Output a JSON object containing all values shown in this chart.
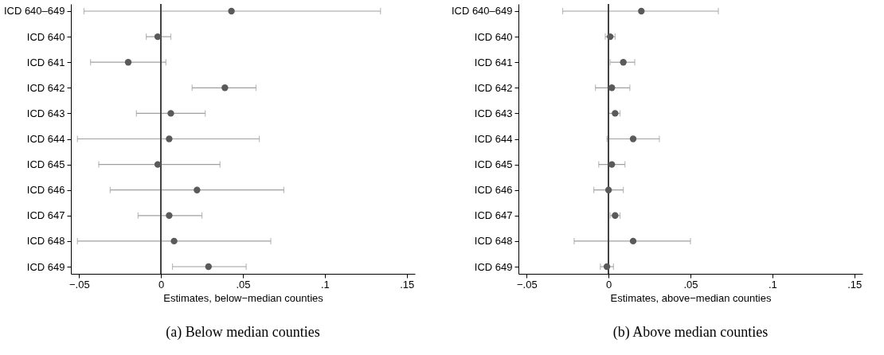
{
  "chart_data": [
    {
      "type": "scatter",
      "orientation": "horizontal",
      "title": "(a) Below median counties",
      "xlabel": "Estimates, below−median counties",
      "categories": [
        "ICD 640–649",
        "ICD 640",
        "ICD 641",
        "ICD 642",
        "ICD 643",
        "ICD 644",
        "ICD 645",
        "ICD 646",
        "ICD 647",
        "ICD 648",
        "ICD 649"
      ],
      "values": [
        0.043,
        -0.002,
        -0.02,
        0.039,
        0.006,
        0.005,
        -0.002,
        0.022,
        0.005,
        0.008,
        0.029
      ],
      "errors": [
        [
          -0.047,
          0.134
        ],
        [
          -0.009,
          0.006
        ],
        [
          -0.043,
          0.003
        ],
        [
          0.019,
          0.058
        ],
        [
          -0.015,
          0.027
        ],
        [
          -0.051,
          0.06
        ],
        [
          -0.038,
          0.036
        ],
        [
          -0.031,
          0.075
        ],
        [
          -0.014,
          0.025
        ],
        [
          -0.051,
          0.067
        ],
        [
          0.007,
          0.052
        ]
      ],
      "color": "#5a5a5a",
      "marker": "circle",
      "xlim": [
        -0.055,
        0.155
      ],
      "xticks": [
        {
          "value": -0.05,
          "label": "−.05"
        },
        0,
        {
          "value": 0.05,
          "label": ".05"
        },
        {
          "value": 0.1,
          "label": ".1"
        },
        {
          "value": 0.15,
          "label": ".15"
        }
      ],
      "ref_lines": [
        {
          "axis": "x",
          "value": 0,
          "label": null,
          "color": "#444444"
        }
      ]
    },
    {
      "type": "scatter",
      "orientation": "horizontal",
      "title": "(b) Above median counties",
      "xlabel": "Estimates, above−median counties",
      "categories": [
        "ICD 640–649",
        "ICD 640",
        "ICD 641",
        "ICD 642",
        "ICD 643",
        "ICD 644",
        "ICD 645",
        "ICD 646",
        "ICD 647",
        "ICD 648",
        "ICD 649"
      ],
      "values": [
        0.02,
        0.001,
        0.009,
        0.002,
        0.004,
        0.015,
        0.002,
        0.0,
        0.004,
        0.015,
        -0.001
      ],
      "errors": [
        [
          -0.028,
          0.067
        ],
        [
          -0.002,
          0.004
        ],
        [
          0.001,
          0.016
        ],
        [
          -0.008,
          0.013
        ],
        [
          0.0,
          0.007
        ],
        [
          -0.001,
          0.031
        ],
        [
          -0.006,
          0.01
        ],
        [
          -0.009,
          0.009
        ],
        [
          0.001,
          0.007
        ],
        [
          -0.021,
          0.05
        ],
        [
          -0.005,
          0.003
        ]
      ],
      "color": "#5a5a5a",
      "marker": "circle",
      "xlim": [
        -0.055,
        0.155
      ],
      "xticks": [
        {
          "value": -0.05,
          "label": "−.05"
        },
        0,
        {
          "value": 0.05,
          "label": ".05"
        },
        {
          "value": 0.1,
          "label": ".1"
        },
        {
          "value": 0.15,
          "label": ".15"
        }
      ],
      "ref_lines": [
        {
          "axis": "x",
          "value": 0,
          "label": null,
          "color": "#444444"
        }
      ]
    }
  ]
}
